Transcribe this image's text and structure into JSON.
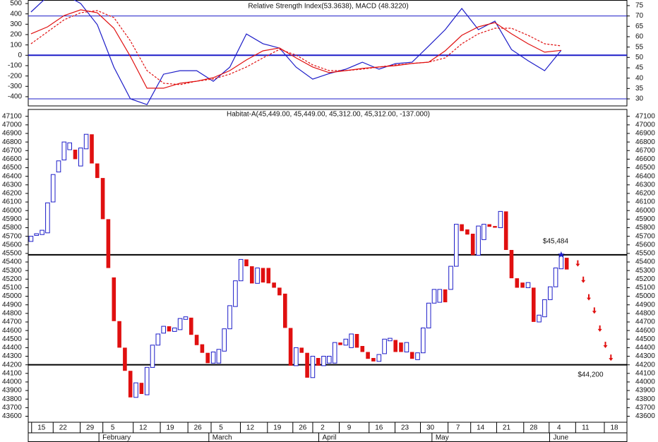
{
  "chart_data": [
    {
      "type": "line",
      "title": "Relative Strength Index(53.3638), MACD (48.3220)",
      "x": [
        0,
        3,
        6,
        9,
        12,
        15,
        18,
        21,
        24,
        27,
        30,
        33,
        36,
        39,
        42,
        45,
        48,
        51,
        54,
        57,
        60,
        63,
        66,
        69,
        72,
        75,
        78,
        81,
        84,
        87,
        90,
        93,
        96
      ],
      "xlim": [
        -0.5,
        107.9
      ],
      "ylim": [
        -489,
        534
      ],
      "yticks": [
        -400,
        -300,
        -200,
        -100,
        0,
        100,
        200,
        300,
        400,
        500
      ],
      "y2lim": [
        26.6,
        77.7
      ],
      "y2ticks": [
        30,
        35,
        40,
        45,
        50,
        55,
        60,
        65,
        70,
        75
      ],
      "hlines_y2": [
        70,
        30
      ],
      "zero_line": true,
      "series": [
        {
          "color": "#1c1cc8",
          "axis": "y2",
          "values": [
            71.9,
            79.4,
            80.5,
            76.0,
            65.8,
            45.3,
            30.0,
            27.2,
            41.9,
            43.6,
            43.6,
            38.5,
            45.3,
            61.3,
            56.6,
            54.5,
            45.3,
            39.5,
            42.2,
            44.3,
            47.7,
            44.3,
            47.0,
            47.7,
            55.5,
            63.4,
            73.6,
            63.4,
            67.5,
            53.8,
            48.4,
            43.6,
            53.4
          ]
        },
        {
          "color": "#e01010",
          "values": [
            207,
            275,
            384,
            439,
            411,
            261,
            -11,
            -318,
            -318,
            -270,
            -250,
            -216,
            -148,
            -45,
            43,
            71,
            -25,
            -113,
            -168,
            -148,
            -127,
            -113,
            -100,
            -79,
            -66,
            43,
            193,
            275,
            316,
            207,
            111,
            30,
            48
          ]
        },
        {
          "color": "#e01010",
          "dashed": true,
          "values": [
            111,
            227,
            343,
            411,
            432,
            364,
            139,
            -148,
            -270,
            -284,
            -250,
            -229,
            -182,
            -113,
            -25,
            57,
            2,
            -93,
            -148,
            -148,
            -134,
            -113,
            -93,
            -79,
            -66,
            -25,
            111,
            207,
            261,
            261,
            193,
            111,
            91
          ]
        }
      ]
    },
    {
      "type": "candlestick",
      "title": "Habitat-A(45,449.00, 45,449.00, 45,312.00, 45,312.00, -137.000)",
      "open": [
        45640,
        45710,
        45720,
        45740,
        46100,
        46450,
        46590,
        46710,
        46710,
        46520,
        46720,
        46890,
        46550,
        46380,
        45900,
        45220,
        44710,
        44400,
        44130,
        43820,
        43990,
        43850,
        44170,
        44430,
        44570,
        44650,
        44590,
        44610,
        44730,
        44750,
        44550,
        44440,
        44340,
        44220,
        44220,
        44360,
        44620,
        44880,
        45180,
        45430,
        45350,
        45150,
        45330,
        45330,
        45160,
        45100,
        45030,
        44630,
        44190,
        44400,
        44340,
        44050,
        44280,
        44190,
        44220,
        44220,
        44460,
        44430,
        44400,
        44560,
        44420,
        44350,
        44280,
        44240,
        44330,
        44480,
        44490,
        44460,
        44350,
        44350,
        44260,
        44340,
        44630,
        44920,
        44930,
        45080,
        45080,
        45350,
        45840,
        45780,
        45730,
        45480,
        45660,
        45840,
        45820,
        45800,
        45990,
        45540,
        45210,
        45160,
        45100,
        45100,
        44700,
        44760,
        44960,
        45110,
        45320,
        45449
      ],
      "close": [
        45700,
        45730,
        45770,
        46090,
        46420,
        46580,
        46800,
        46790,
        46600,
        46730,
        46890,
        46550,
        46380,
        45900,
        45330,
        44710,
        44400,
        44130,
        43820,
        43990,
        43860,
        44170,
        44430,
        44560,
        44650,
        44590,
        44630,
        44740,
        44760,
        44550,
        44430,
        44340,
        44220,
        44350,
        44380,
        44620,
        44890,
        45180,
        45430,
        45350,
        45150,
        45330,
        45160,
        45150,
        45100,
        45010,
        44630,
        44190,
        44400,
        44340,
        44050,
        44300,
        44190,
        44300,
        44300,
        44460,
        44430,
        44500,
        44560,
        44400,
        44350,
        44270,
        44240,
        44320,
        44500,
        44510,
        44350,
        44350,
        44460,
        44270,
        44340,
        44630,
        44920,
        45080,
        45080,
        44930,
        45350,
        45840,
        45760,
        45720,
        45480,
        45820,
        45840,
        45810,
        45800,
        45990,
        45540,
        45210,
        45100,
        45100,
        45160,
        44700,
        44780,
        44960,
        45110,
        45330,
        45470,
        45312
      ],
      "up_color": "#1c1cc8",
      "down_color": "#e01010",
      "xlim": [
        -0.5,
        107.9
      ],
      "ylim": [
        43530,
        47180
      ],
      "yticks": [
        43600,
        43700,
        43800,
        43900,
        44000,
        44100,
        44200,
        44300,
        44400,
        44500,
        44600,
        44700,
        44800,
        44900,
        45000,
        45100,
        45200,
        45300,
        45400,
        45500,
        45600,
        45700,
        45800,
        45900,
        46000,
        46100,
        46200,
        46300,
        46400,
        46500,
        46600,
        46700,
        46800,
        46900,
        47000,
        47100
      ],
      "xticks": [
        {
          "value": 1.9,
          "label": "15"
        },
        {
          "value": 5.8,
          "label": "22"
        },
        {
          "value": 10.7,
          "label": "29"
        },
        {
          "value": 14.8,
          "label": "5"
        },
        {
          "value": 20.3,
          "label": "12"
        },
        {
          "value": 25.2,
          "label": "19"
        },
        {
          "value": 30.2,
          "label": "26"
        },
        {
          "value": 34.4,
          "label": "5"
        },
        {
          "value": 39.7,
          "label": "12"
        },
        {
          "value": 44.6,
          "label": "19"
        },
        {
          "value": 49.2,
          "label": "26"
        },
        {
          "value": 52.8,
          "label": "2"
        },
        {
          "value": 57.6,
          "label": "9"
        },
        {
          "value": 63.0,
          "label": "16"
        },
        {
          "value": 67.7,
          "label": "23"
        },
        {
          "value": 72.3,
          "label": "30"
        },
        {
          "value": 77.3,
          "label": "7"
        },
        {
          "value": 81.4,
          "label": "14"
        },
        {
          "value": 86.1,
          "label": "21"
        },
        {
          "value": 91.0,
          "label": "28"
        },
        {
          "value": 95.6,
          "label": "4"
        },
        {
          "value": 100.4,
          "label": "11"
        },
        {
          "value": 105.6,
          "label": "18"
        }
      ],
      "month_ticks": [
        {
          "value": 12.3,
          "label": "February"
        },
        {
          "value": 32.2,
          "label": "March"
        },
        {
          "value": 52.1,
          "label": "April"
        },
        {
          "value": 72.6,
          "label": "May"
        },
        {
          "value": 93.9,
          "label": "June"
        }
      ],
      "annotations": [
        {
          "label": "$45,484",
          "value": 45484,
          "x": 96
        },
        {
          "label": "$44,200",
          "value": 44200,
          "x": 99
        }
      ],
      "forecast_x": [
        99,
        100,
        101,
        102,
        103,
        104,
        105
      ],
      "forecast": [
        45370,
        45180,
        44975,
        44820,
        44610,
        44420,
        44270
      ],
      "forecast_color": "#e01010"
    }
  ]
}
